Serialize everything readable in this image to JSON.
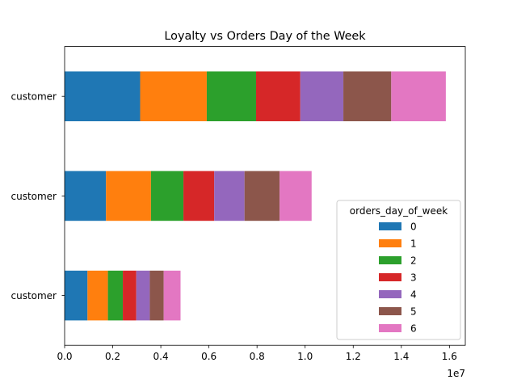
{
  "chart_data": {
    "type": "bar",
    "orientation": "horizontal",
    "stacked": true,
    "title": "Loyalty vs Orders Day of the Week",
    "categories": [
      "customer",
      "customer",
      "customer"
    ],
    "x_tick_labels": [
      "0.0",
      "0.2",
      "0.4",
      "0.6",
      "0.8",
      "1.0",
      "1.2",
      "1.4",
      "1.6"
    ],
    "x_ticks": [
      0,
      2000000,
      4000000,
      6000000,
      8000000,
      10000000,
      12000000,
      14000000,
      16000000
    ],
    "x_offset_label": "1e7",
    "xlim": [
      0,
      16660000
    ],
    "grid": false,
    "legend": {
      "title": "orders_day_of_week",
      "placement": "lower right"
    },
    "series": [
      {
        "name": "0",
        "color": "#1f77b4",
        "values": [
          950000,
          1720000,
          3140000
        ]
      },
      {
        "name": "1",
        "color": "#ff7f0e",
        "values": [
          850000,
          1870000,
          2770000
        ]
      },
      {
        "name": "2",
        "color": "#2ca02c",
        "values": [
          620000,
          1350000,
          2050000
        ]
      },
      {
        "name": "3",
        "color": "#d62728",
        "values": [
          560000,
          1280000,
          1840000
        ]
      },
      {
        "name": "4",
        "color": "#9467bd",
        "values": [
          560000,
          1260000,
          1790000
        ]
      },
      {
        "name": "5",
        "color": "#8c564b",
        "values": [
          580000,
          1460000,
          1990000
        ]
      },
      {
        "name": "6",
        "color": "#e377c2",
        "values": [
          700000,
          1330000,
          2270000
        ]
      }
    ]
  }
}
